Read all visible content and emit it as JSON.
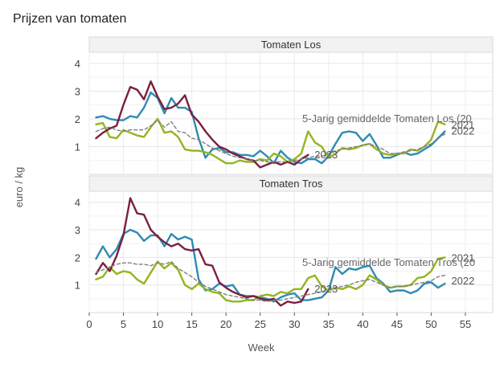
{
  "chart_data": {
    "type": "line",
    "title": "Prijzen van tomaten",
    "xlabel": "Week",
    "ylabel": "euro / kg",
    "xlim": [
      0,
      59
    ],
    "ylim": [
      0,
      4.4
    ],
    "x_ticks": [
      0,
      5,
      10,
      15,
      20,
      25,
      30,
      35,
      40,
      45,
      50,
      55
    ],
    "x_tick_labels": [
      "0",
      "5",
      "10",
      "15",
      "20",
      "25",
      "30",
      "35",
      "40",
      "45",
      "50",
      "55"
    ],
    "y_ticks": [
      1,
      2,
      3,
      4
    ],
    "y_tick_labels": [
      "1",
      "2",
      "3",
      "4"
    ],
    "grid": true,
    "legend": "direct labels at line ends",
    "colors": {
      "2021": "#93b51f",
      "2022": "#2e8bb3",
      "2023": "#7b1f3f",
      "avg": "#7f7f7f"
    },
    "panels": [
      {
        "strip": "Tomaten Los",
        "series": [
          {
            "key": "2022",
            "label": "2022",
            "x": [
              1,
              2,
              3,
              4,
              5,
              6,
              7,
              8,
              9,
              10,
              11,
              12,
              13,
              14,
              15,
              16,
              17,
              18,
              19,
              20,
              21,
              22,
              23,
              24,
              25,
              26,
              27,
              28,
              29,
              30,
              31,
              32,
              33,
              34,
              35,
              36,
              37,
              38,
              39,
              40,
              41,
              42,
              43,
              44,
              45,
              46,
              47,
              48,
              49,
              50,
              51,
              52
            ],
            "y": [
              2.05,
              2.1,
              2.0,
              1.95,
              1.95,
              2.1,
              2.05,
              2.4,
              2.95,
              2.75,
              2.2,
              2.75,
              2.4,
              2.4,
              2.25,
              1.3,
              0.6,
              0.9,
              0.95,
              0.8,
              0.8,
              0.7,
              0.7,
              0.65,
              0.85,
              0.65,
              0.4,
              0.85,
              0.6,
              0.45,
              0.4,
              0.55,
              0.55,
              0.4,
              0.65,
              1.1,
              1.5,
              1.55,
              1.5,
              1.2,
              1.45,
              1.05,
              0.6,
              0.6,
              0.7,
              0.8,
              0.7,
              0.75,
              0.9,
              1.05,
              1.3,
              1.55
            ]
          },
          {
            "key": "2021",
            "label": "2021",
            "x": [
              1,
              2,
              3,
              4,
              5,
              6,
              7,
              8,
              9,
              10,
              11,
              12,
              13,
              14,
              15,
              16,
              17,
              18,
              19,
              20,
              21,
              22,
              23,
              24,
              25,
              26,
              27,
              28,
              29,
              30,
              31,
              32,
              33,
              34,
              35,
              36,
              37,
              38,
              39,
              40,
              41,
              42,
              43,
              44,
              45,
              46,
              47,
              48,
              49,
              50,
              51,
              52
            ],
            "y": [
              1.8,
              1.85,
              1.35,
              1.3,
              1.6,
              1.5,
              1.4,
              1.35,
              1.7,
              2.0,
              1.5,
              1.55,
              1.35,
              0.9,
              0.85,
              0.85,
              0.8,
              0.7,
              0.55,
              0.4,
              0.4,
              0.5,
              0.45,
              0.45,
              0.55,
              0.5,
              0.75,
              0.65,
              0.45,
              0.55,
              0.75,
              1.55,
              1.15,
              1.0,
              0.6,
              0.75,
              0.95,
              0.9,
              0.95,
              1.05,
              1.1,
              0.9,
              0.75,
              0.7,
              0.75,
              0.75,
              0.9,
              0.85,
              1.0,
              1.25,
              1.9,
              1.8
            ]
          },
          {
            "key": "2023",
            "label": "2023",
            "x": [
              1,
              2,
              3,
              4,
              5,
              6,
              7,
              8,
              9,
              10,
              11,
              12,
              13,
              14,
              15,
              16,
              17,
              18,
              19,
              20,
              21,
              22,
              23,
              24,
              25,
              26,
              27,
              28,
              29,
              30,
              31,
              32
            ],
            "y": [
              1.3,
              1.5,
              1.65,
              1.75,
              2.5,
              3.15,
              3.05,
              2.7,
              3.35,
              2.8,
              2.35,
              2.4,
              2.55,
              2.85,
              2.15,
              1.9,
              1.55,
              1.25,
              1.0,
              0.9,
              0.75,
              0.65,
              0.55,
              0.5,
              0.25,
              0.35,
              0.45,
              0.35,
              0.45,
              0.35,
              0.55,
              0.7
            ]
          },
          {
            "key": "avg",
            "label": "5-Jarig gemiddelde Tomaten Los (20",
            "x": [
              1,
              2,
              3,
              4,
              5,
              6,
              7,
              8,
              9,
              10,
              11,
              12,
              13,
              14,
              15,
              16,
              17,
              18,
              19,
              20,
              21,
              22,
              23,
              24,
              25,
              26,
              27,
              28,
              29,
              30,
              31,
              32,
              33,
              34,
              35,
              36,
              37,
              38,
              39,
              40,
              41,
              42,
              43,
              44,
              45,
              46,
              47,
              48,
              49,
              50,
              51,
              52
            ],
            "y": [
              1.55,
              1.65,
              1.7,
              1.6,
              1.55,
              1.6,
              1.6,
              1.6,
              1.75,
              1.95,
              1.7,
              1.9,
              1.55,
              1.5,
              1.3,
              1.25,
              1.1,
              0.95,
              0.85,
              0.75,
              0.65,
              0.6,
              0.55,
              0.5,
              0.5,
              0.45,
              0.45,
              0.45,
              0.45,
              0.5,
              0.55,
              0.6,
              0.65,
              0.65,
              0.75,
              0.85,
              0.9,
              0.95,
              1.0,
              1.05,
              1.1,
              1.0,
              0.9,
              0.75,
              0.75,
              0.8,
              0.85,
              0.9,
              1.0,
              1.1,
              1.3,
              1.45
            ]
          }
        ]
      },
      {
        "strip": "Tomaten Tros",
        "series": [
          {
            "key": "2022",
            "label": "2022",
            "x": [
              1,
              2,
              3,
              4,
              5,
              6,
              7,
              8,
              9,
              10,
              11,
              12,
              13,
              14,
              15,
              16,
              17,
              18,
              19,
              20,
              21,
              22,
              23,
              24,
              25,
              26,
              27,
              28,
              29,
              30,
              31,
              32,
              33,
              34,
              35,
              36,
              37,
              38,
              39,
              40,
              41,
              42,
              43,
              44,
              45,
              46,
              47,
              48,
              49,
              50,
              51,
              52
            ],
            "y": [
              1.95,
              2.4,
              2.0,
              2.3,
              2.85,
              3.0,
              2.9,
              2.6,
              2.8,
              2.8,
              2.4,
              2.85,
              2.65,
              2.75,
              2.65,
              1.2,
              0.8,
              0.85,
              1.05,
              0.95,
              1.0,
              0.65,
              0.6,
              0.6,
              0.55,
              0.5,
              0.4,
              0.55,
              0.65,
              0.7,
              0.45,
              0.45,
              0.5,
              0.55,
              0.8,
              1.65,
              1.4,
              1.6,
              1.55,
              1.65,
              1.7,
              1.25,
              1.05,
              0.75,
              0.8,
              0.8,
              0.7,
              0.8,
              1.05,
              1.1,
              0.9,
              1.05
            ]
          },
          {
            "key": "2021",
            "label": "2021",
            "x": [
              1,
              2,
              3,
              4,
              5,
              6,
              7,
              8,
              9,
              10,
              11,
              12,
              13,
              14,
              15,
              16,
              17,
              18,
              19,
              20,
              21,
              22,
              23,
              24,
              25,
              26,
              27,
              28,
              29,
              30,
              31,
              32,
              33,
              34,
              35,
              36,
              37,
              38,
              39,
              40,
              41,
              42,
              43,
              44,
              45,
              46,
              47,
              48,
              49,
              50,
              51,
              52
            ],
            "y": [
              1.2,
              1.3,
              1.65,
              1.4,
              1.5,
              1.45,
              1.2,
              1.05,
              1.45,
              1.85,
              1.6,
              1.8,
              1.55,
              1.0,
              0.85,
              1.05,
              0.85,
              0.75,
              0.7,
              0.45,
              0.4,
              0.4,
              0.45,
              0.45,
              0.6,
              0.65,
              0.6,
              0.75,
              0.7,
              0.85,
              0.85,
              1.25,
              1.35,
              0.95,
              0.8,
              0.9,
              0.85,
              0.95,
              0.85,
              1.0,
              1.35,
              1.2,
              1.0,
              0.9,
              0.95,
              0.95,
              1.0,
              1.25,
              1.3,
              1.5,
              1.95,
              2.0
            ]
          },
          {
            "key": "2023",
            "label": "2023",
            "x": [
              1,
              2,
              3,
              4,
              5,
              6,
              7,
              8,
              9,
              10,
              11,
              12,
              13,
              14,
              15,
              16,
              17,
              18,
              19,
              20,
              21,
              22,
              23,
              24,
              25,
              26,
              27,
              28,
              29,
              30,
              31,
              32
            ],
            "y": [
              1.4,
              1.8,
              1.5,
              2.05,
              2.8,
              4.15,
              3.6,
              3.55,
              3.0,
              2.75,
              2.55,
              2.4,
              2.5,
              2.3,
              2.25,
              2.3,
              1.75,
              1.7,
              1.1,
              0.9,
              0.75,
              0.65,
              0.55,
              0.6,
              0.5,
              0.45,
              0.5,
              0.25,
              0.4,
              0.35,
              0.4,
              0.85
            ]
          },
          {
            "key": "avg",
            "label": "5-Jarig gemiddelde Tomaten Tros (20",
            "x": [
              1,
              2,
              3,
              4,
              5,
              6,
              7,
              8,
              9,
              10,
              11,
              12,
              13,
              14,
              15,
              16,
              17,
              18,
              19,
              20,
              21,
              22,
              23,
              24,
              25,
              26,
              27,
              28,
              29,
              30,
              31,
              32,
              33,
              34,
              35,
              36,
              37,
              38,
              39,
              40,
              41,
              42,
              43,
              44,
              45,
              46,
              47,
              48,
              49,
              50,
              51,
              52
            ],
            "y": [
              1.45,
              1.55,
              1.65,
              1.75,
              1.8,
              1.8,
              1.75,
              1.75,
              1.7,
              1.8,
              1.75,
              1.85,
              1.6,
              1.45,
              1.3,
              1.1,
              0.95,
              0.85,
              0.75,
              0.65,
              0.6,
              0.55,
              0.5,
              0.45,
              0.45,
              0.4,
              0.45,
              0.45,
              0.5,
              0.55,
              0.6,
              0.65,
              0.7,
              0.75,
              0.85,
              0.9,
              0.95,
              1.0,
              1.1,
              1.15,
              1.2,
              1.1,
              1.0,
              0.9,
              0.95,
              0.95,
              1.0,
              1.05,
              1.1,
              1.15,
              1.3,
              1.35
            ]
          }
        ]
      }
    ]
  }
}
